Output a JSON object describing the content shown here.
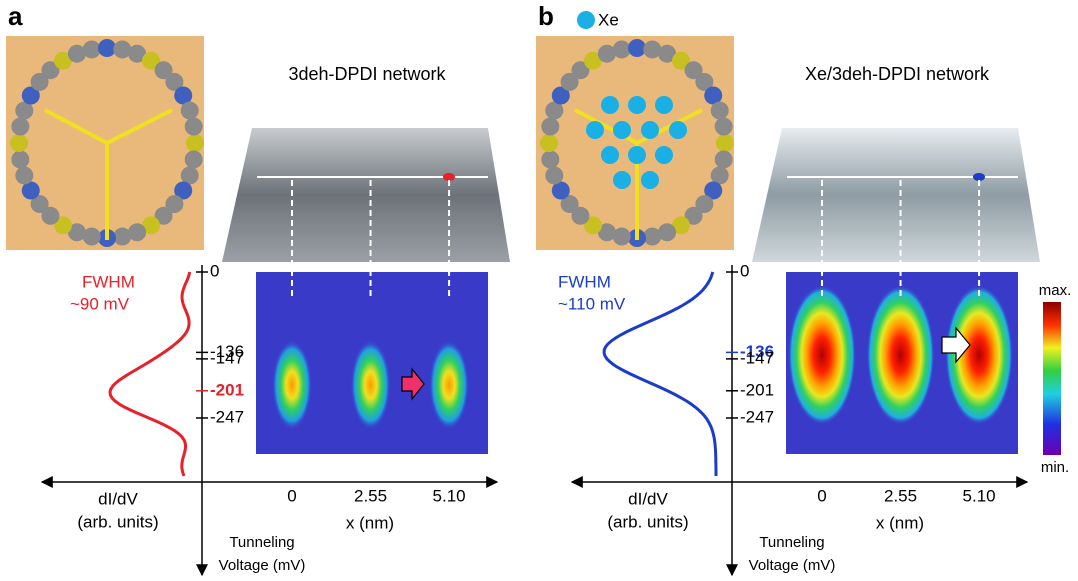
{
  "panels": [
    {
      "label": "a",
      "title": "3deh-DPDI network",
      "color": "#e8202a",
      "fwhm_label": "FWHM",
      "fwhm_value": "~90 mV",
      "voltage_ticks": [
        0,
        -136,
        -147,
        -201,
        -247
      ],
      "x_ticks": [
        0,
        2.55,
        {
          "value": 5.1,
          "label": "5.10"
        }
      ],
      "x_label": "x (nm)",
      "didv_label": "dI/dV",
      "didv_unit": "(arb. units)",
      "voltage_label_1": "Tunneling",
      "voltage_label_2": "Voltage (mV)"
    },
    {
      "label": "b",
      "title": "Xe/3deh-DPDI network",
      "color": "#1a3cc8",
      "legend": "Xe",
      "fwhm_label": "FWHM",
      "fwhm_value": "~110 mV",
      "voltage_ticks": [
        0,
        -136,
        -147,
        -201,
        -247
      ],
      "x_ticks": [
        0,
        2.55,
        {
          "value": 5.1,
          "label": "5.10"
        }
      ],
      "x_label": "x (nm)",
      "didv_label": "dI/dV",
      "didv_unit": "(arb. units)",
      "voltage_label_1": "Tunneling",
      "voltage_label_2": "Voltage (mV)"
    }
  ],
  "colorbar": {
    "max": "max.",
    "min": "min."
  }
}
